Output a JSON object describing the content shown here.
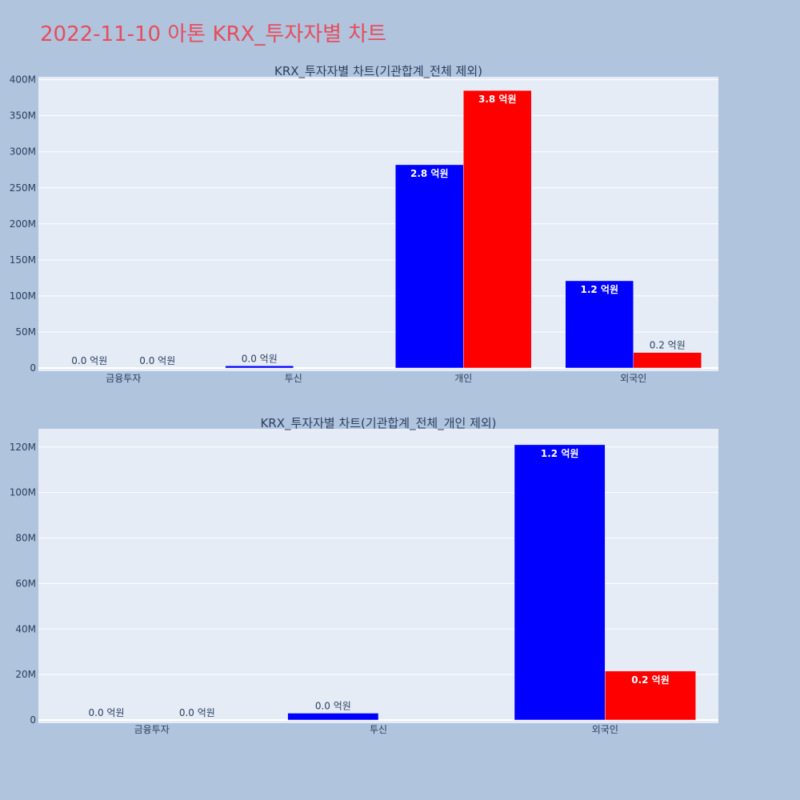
{
  "page": {
    "title": "2022-11-10 아톤 KRX_투자자별 차트"
  },
  "chart_data": [
    {
      "type": "bar",
      "title": "KRX_투자자별 차트(기관합계_전체 제외)",
      "categories": [
        "금융투자",
        "투신",
        "개인",
        "외국인"
      ],
      "series": [
        {
          "color": "#0000ff",
          "values": [
            0,
            3000000,
            282000000,
            121000000
          ],
          "labels": [
            "0.0 억원",
            "0.0 억원",
            "2.8 억원",
            "1.2 억원"
          ]
        },
        {
          "color": "#ff0000",
          "values": [
            0,
            0,
            385000000,
            21500000
          ],
          "labels": [
            "0.0 억원",
            "",
            "3.8 억원",
            "0.2 억원"
          ]
        }
      ],
      "ylim": [
        0,
        404000000
      ],
      "yticks": [
        0,
        50000000,
        100000000,
        150000000,
        200000000,
        250000000,
        300000000,
        350000000,
        400000000
      ],
      "ytick_labels": [
        "0",
        "50M",
        "100M",
        "150M",
        "200M",
        "250M",
        "300M",
        "350M",
        "400M"
      ],
      "grid": true
    },
    {
      "type": "bar",
      "title": "KRX_투자자별 차트(기관합계_전체_개인 제외)",
      "categories": [
        "금융투자",
        "투신",
        "외국인"
      ],
      "series": [
        {
          "color": "#0000ff",
          "values": [
            0,
            3000000,
            121000000
          ],
          "labels": [
            "0.0 억원",
            "0.0 억원",
            "1.2 억원"
          ]
        },
        {
          "color": "#ff0000",
          "values": [
            0,
            0,
            21500000
          ],
          "labels": [
            "0.0 억원",
            "",
            "0.2 억원"
          ]
        }
      ],
      "ylim": [
        0,
        128000000
      ],
      "yticks": [
        0,
        20000000,
        40000000,
        60000000,
        80000000,
        100000000,
        120000000
      ],
      "ytick_labels": [
        "0",
        "20M",
        "40M",
        "60M",
        "80M",
        "100M",
        "120M"
      ],
      "grid": true
    }
  ]
}
